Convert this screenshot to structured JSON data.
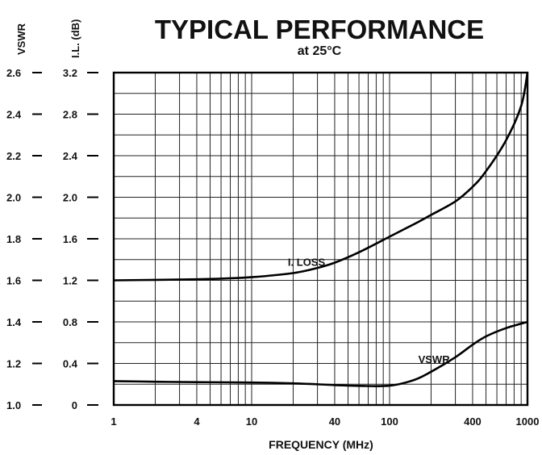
{
  "chart_data": {
    "type": "line",
    "title": "TYPICAL PERFORMANCE",
    "subtitle": "at 25°C",
    "xlabel": "FREQUENCY (MHz)",
    "ylabel_left": "VSWR",
    "ylabel_right": "I.L. (dB)",
    "x_scale": "log",
    "xlim": [
      1,
      1000
    ],
    "x_ticks": [
      1,
      4,
      10,
      40,
      100,
      400,
      1000
    ],
    "x_tick_labels": [
      "1",
      "4",
      "10",
      "40",
      "100",
      "400",
      "1000"
    ],
    "vswr_ticks": [
      "1.0",
      "1.2",
      "1.4",
      "1.6",
      "1.8",
      "2.0",
      "2.2",
      "2.4",
      "2.6"
    ],
    "il_ticks": [
      "0",
      "0.4",
      "0.8",
      "1.2",
      "1.6",
      "2.0",
      "2.4",
      "2.8",
      "3.2"
    ],
    "ylim_vswr": [
      1.0,
      2.6
    ],
    "ylim_il": [
      0,
      3.2
    ],
    "grid": true,
    "series": [
      {
        "name": "I. LOSS",
        "axis": "il",
        "x": [
          1,
          2,
          4,
          7,
          10,
          20,
          30,
          40,
          60,
          100,
          150,
          200,
          300,
          400,
          500,
          700,
          900,
          1000
        ],
        "y": [
          1.2,
          1.205,
          1.21,
          1.22,
          1.23,
          1.27,
          1.32,
          1.37,
          1.47,
          1.62,
          1.74,
          1.83,
          1.96,
          2.1,
          2.25,
          2.55,
          2.88,
          3.2
        ]
      },
      {
        "name": "VSWR",
        "axis": "vswr",
        "x": [
          1,
          2,
          4,
          10,
          20,
          40,
          60,
          100,
          150,
          200,
          300,
          400,
          500,
          700,
          1000
        ],
        "y": [
          1.115,
          1.112,
          1.11,
          1.108,
          1.104,
          1.096,
          1.092,
          1.093,
          1.12,
          1.16,
          1.23,
          1.29,
          1.33,
          1.37,
          1.4
        ]
      }
    ]
  }
}
